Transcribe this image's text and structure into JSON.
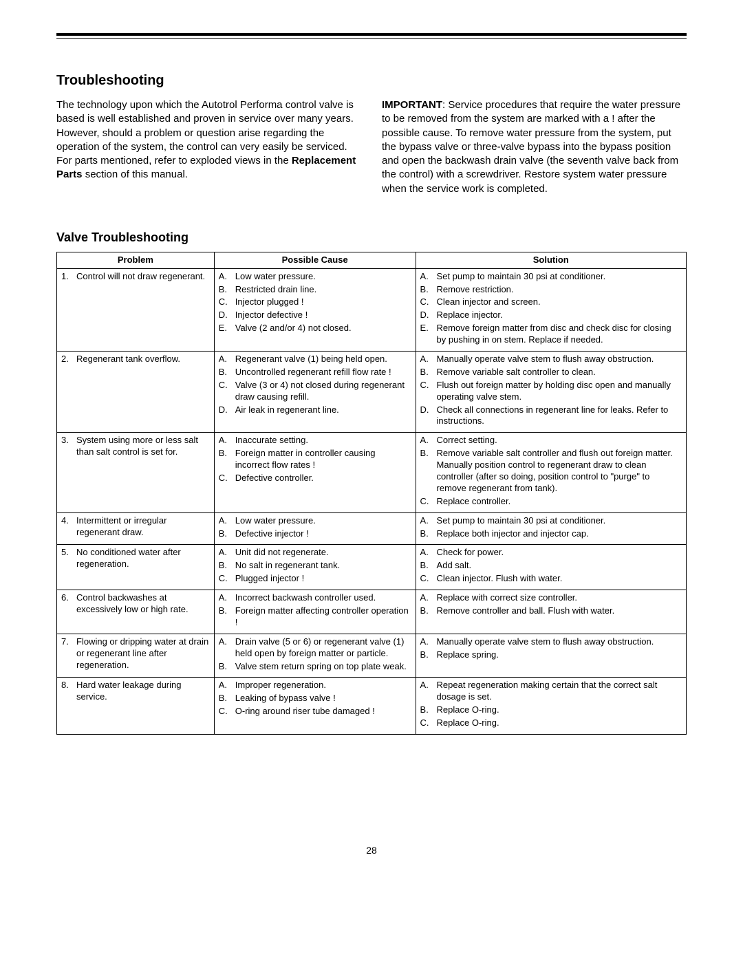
{
  "page_number": "28",
  "title": "Troubleshooting",
  "intro_left_pre": "The technology upon which the Autotrol Performa control valve is based is well established and proven in service over many years. However, should a problem or question arise regarding the operation of the system, the control can very easily be serviced. For parts mentioned, refer to exploded views in the ",
  "intro_left_bold": "Replacement Parts",
  "intro_left_post": " section of this manual.",
  "intro_right_bold": "IMPORTANT",
  "intro_right_rest": ": Service procedures that require the water pressure to be removed from the system are marked with a ! after the possible cause. To remove water pressure from the system, put the bypass valve or three-valve bypass into the bypass position and open the backwash drain valve (the seventh valve back from the control) with a screwdriver. Restore system water pressure when the service work is completed.",
  "subtitle": "Valve Troubleshooting",
  "headers": {
    "problem": "Problem",
    "cause": "Possible Cause",
    "solution": "Solution"
  },
  "rows": [
    {
      "num": "1.",
      "problem": "Control will not draw regenerant.",
      "causes": [
        {
          "l": "A.",
          "t": "Low water pressure."
        },
        {
          "l": "B.",
          "t": "Restricted drain line."
        },
        {
          "l": "C.",
          "t": "Injector plugged !"
        },
        {
          "l": "D.",
          "t": "Injector defective !"
        },
        {
          "l": "E.",
          "t": "Valve (2 and/or 4) not closed."
        }
      ],
      "solutions": [
        {
          "l": "A.",
          "t": "Set pump to maintain 30 psi at conditioner."
        },
        {
          "l": "B.",
          "t": "Remove restriction."
        },
        {
          "l": "C.",
          "t": "Clean injector and screen."
        },
        {
          "l": "D.",
          "t": "Replace injector."
        },
        {
          "l": "E.",
          "t": "Remove foreign matter from disc and check disc for closing by pushing in on stem. Replace if needed."
        }
      ]
    },
    {
      "num": "2.",
      "problem": "Regenerant tank overflow.",
      "causes": [
        {
          "l": "A.",
          "t": "Regenerant valve (1) being held open."
        },
        {
          "l": "B.",
          "t": "Uncontrolled regenerant refill flow rate !"
        },
        {
          "l": "C.",
          "t": "Valve (3 or 4) not closed during regenerant draw causing refill."
        },
        {
          "l": "D.",
          "t": "Air leak in regenerant line."
        }
      ],
      "solutions": [
        {
          "l": "A.",
          "t": "Manually operate valve stem to flush away obstruction."
        },
        {
          "l": "B.",
          "t": "Remove variable salt controller to clean."
        },
        {
          "l": "C.",
          "t": "Flush out foreign matter by holding disc open and manually operating valve stem."
        },
        {
          "l": "D.",
          "t": "Check all connections in regenerant line for leaks. Refer to instructions."
        }
      ]
    },
    {
      "num": "3.",
      "problem": "System using more or less salt than salt control is set for.",
      "causes": [
        {
          "l": "A.",
          "t": "Inaccurate setting."
        },
        {
          "l": "B.",
          "t": "Foreign matter in controller causing incorrect flow rates !"
        },
        {
          "l": "C.",
          "t": "Defective controller."
        }
      ],
      "solutions": [
        {
          "l": "A.",
          "t": "Correct setting."
        },
        {
          "l": "B.",
          "t": "Remove variable salt controller and flush out foreign matter. Manually position control to regenerant draw to clean controller (after so doing, position control to \"purge\" to remove regenerant from tank)."
        },
        {
          "l": "C.",
          "t": "Replace controller."
        }
      ]
    },
    {
      "num": "4.",
      "problem": "Intermittent or irregular regenerant draw.",
      "causes": [
        {
          "l": "A.",
          "t": "Low water pressure."
        },
        {
          "l": "B.",
          "t": "Defective injector !"
        }
      ],
      "solutions": [
        {
          "l": "A.",
          "t": "Set pump to maintain 30 psi at conditioner."
        },
        {
          "l": "B.",
          "t": "Replace both injector and injector cap."
        }
      ]
    },
    {
      "num": "5.",
      "problem": "No conditioned water after regeneration.",
      "causes": [
        {
          "l": "A.",
          "t": "Unit did not regenerate."
        },
        {
          "l": "B.",
          "t": "No salt in regenerant tank."
        },
        {
          "l": "C.",
          "t": "Plugged injector !"
        }
      ],
      "solutions": [
        {
          "l": "A.",
          "t": "Check for power."
        },
        {
          "l": "B.",
          "t": "Add salt."
        },
        {
          "l": "C.",
          "t": "Clean injector. Flush with water."
        }
      ]
    },
    {
      "num": "6.",
      "problem": "Control backwashes at excessively low or high rate.",
      "causes": [
        {
          "l": "A.",
          "t": "Incorrect backwash controller used."
        },
        {
          "l": "B.",
          "t": "Foreign matter affecting controller operation !"
        }
      ],
      "solutions": [
        {
          "l": "A.",
          "t": "Replace with correct size controller."
        },
        {
          "l": "B.",
          "t": "Remove controller and ball. Flush with water."
        }
      ]
    },
    {
      "num": "7.",
      "problem": "Flowing or dripping water at drain or regenerant line after regeneration.",
      "causes": [
        {
          "l": "A.",
          "t": "Drain valve (5 or 6) or regenerant valve (1) held open by foreign matter or particle."
        },
        {
          "l": "B.",
          "t": "Valve stem return spring on top plate weak."
        }
      ],
      "solutions": [
        {
          "l": "A.",
          "t": "Manually operate valve stem to flush away obstruction."
        },
        {
          "l": "B.",
          "t": "Replace spring."
        }
      ]
    },
    {
      "num": "8.",
      "problem": "Hard water leakage during service.",
      "causes": [
        {
          "l": "A.",
          "t": "Improper regeneration."
        },
        {
          "l": "B.",
          "t": "Leaking of bypass valve !"
        },
        {
          "l": "C.",
          "t": "O-ring around riser tube damaged !"
        }
      ],
      "solutions": [
        {
          "l": "A.",
          "t": "Repeat regeneration making certain that the correct salt dosage is set."
        },
        {
          "l": "B.",
          "t": "Replace O-ring."
        },
        {
          "l": "C.",
          "t": "Replace O-ring."
        }
      ]
    }
  ]
}
